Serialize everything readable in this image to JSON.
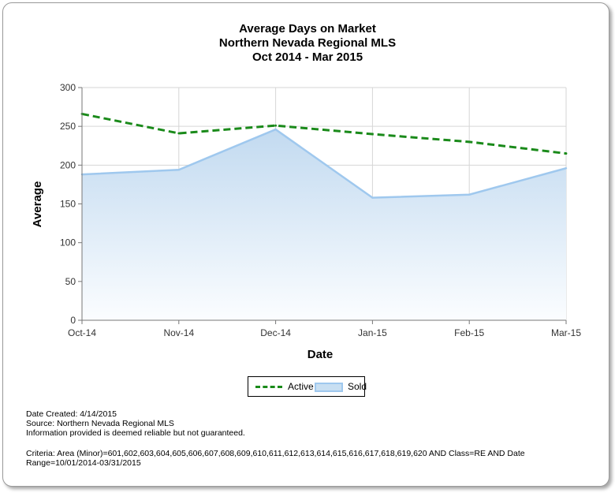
{
  "chart_data": {
    "type": "line",
    "title": [
      "Average Days on Market",
      "Northern Nevada Regional MLS",
      "Oct 2014 - Mar 2015"
    ],
    "xlabel": "Date",
    "ylabel": "Average",
    "categories": [
      "Oct-14",
      "Nov-14",
      "Dec-14",
      "Jan-15",
      "Feb-15",
      "Mar-15"
    ],
    "ylim": [
      0,
      300
    ],
    "yticks": [
      0,
      50,
      100,
      150,
      200,
      250,
      300
    ],
    "grid": true,
    "legend_position": "bottom",
    "series": [
      {
        "name": "Active",
        "style": "dashed-line",
        "color": "#1a8a1a",
        "values": [
          266,
          241,
          251,
          240,
          230,
          215
        ]
      },
      {
        "name": "Sold",
        "style": "area",
        "color": "#9fc8ee",
        "values": [
          188,
          194,
          246,
          158,
          162,
          196
        ]
      }
    ]
  },
  "footer": {
    "line1": "Date Created: 4/14/2015",
    "line2": "Source: Northern Nevada Regional MLS",
    "line3": "Information provided is deemed reliable but not guaranteed.",
    "line4": "Criteria: Area (Minor)=601,602,603,604,605,606,607,608,609,610,611,612,613,614,615,616,617,618,619,620 AND Class=RE AND Date",
    "line5": "Range=10/01/2014-03/31/2015"
  }
}
